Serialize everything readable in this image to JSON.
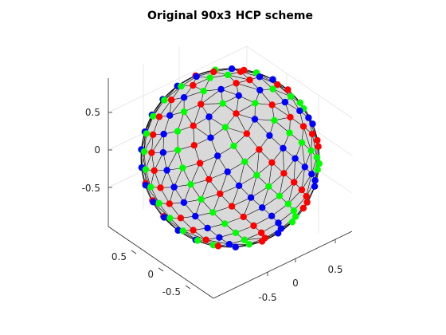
{
  "chart_data": {
    "type": "scatter",
    "projection": "3d",
    "title": "Original 90x3 HCP scheme",
    "xlabel": "",
    "ylabel": "",
    "zlabel": "",
    "xlim": [
      -1,
      1
    ],
    "ylim": [
      -1,
      1
    ],
    "zlim": [
      -1,
      1
    ],
    "x_ticks": [
      "0.5",
      "0",
      "-0.5"
    ],
    "y_ticks": [
      "-0.5",
      "0",
      "0.5"
    ],
    "z_ticks": [
      "0.5",
      "0",
      "-0.5"
    ],
    "grid": true,
    "legend": "none",
    "surface": {
      "type": "triangulated sphere",
      "radius": 1,
      "face_color": "#d9d9d9",
      "edge_color": "#000000"
    },
    "series": [
      {
        "color": "#ff0000",
        "count": 90
      },
      {
        "color": "#00ff00",
        "count": 90
      },
      {
        "color": "#0000ff",
        "count": 90
      }
    ]
  }
}
